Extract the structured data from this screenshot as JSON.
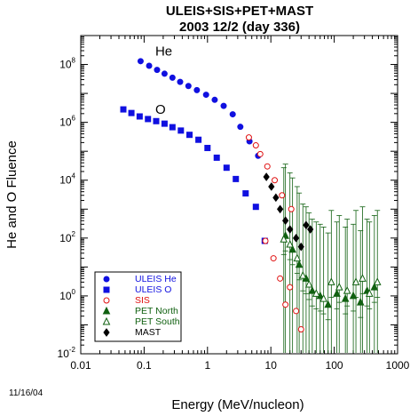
{
  "chart_data": {
    "type": "scatter",
    "title": "ULEIS+SIS+PET+MAST",
    "subtitle": "2003 12/2 (day 336)",
    "xlabel": "Energy (MeV/nucleon)",
    "ylabel": "He and O Fluence",
    "x_scale": "log",
    "y_scale": "log",
    "xlim": [
      0.01,
      1000
    ],
    "ylim": [
      0.01,
      1000000000
    ],
    "x_tick_values": [
      0.01,
      0.1,
      1,
      10,
      100,
      1000
    ],
    "x_tick_labels": [
      "0.01",
      "0.1",
      "1",
      "10",
      "100",
      "1000"
    ],
    "y_tick_labels": [
      {
        "value": 0.01,
        "mantissa": "10",
        "exponent": "-2"
      },
      {
        "value": 1,
        "mantissa": "10",
        "exponent": "0"
      },
      {
        "value": 100,
        "mantissa": "10",
        "exponent": "2"
      },
      {
        "value": 10000,
        "mantissa": "10",
        "exponent": "4"
      },
      {
        "value": 1000000,
        "mantissa": "10",
        "exponent": "6"
      },
      {
        "value": 100000000,
        "mantissa": "10",
        "exponent": "8"
      }
    ],
    "legend_position": "bottom-left",
    "annotations": [
      {
        "text": "He",
        "x": 0.15,
        "y": 200000000
      },
      {
        "text": "O",
        "x": 0.15,
        "y": 2000000
      }
    ],
    "series": [
      {
        "name": "ULEIS He",
        "marker": "circle-filled",
        "color": "#1010e0",
        "points": [
          [
            0.088,
            130000000.0
          ],
          [
            0.12,
            90000000.0
          ],
          [
            0.16,
            65000000.0
          ],
          [
            0.21,
            48000000.0
          ],
          [
            0.28,
            35000000.0
          ],
          [
            0.37,
            25000000.0
          ],
          [
            0.5,
            18000000.0
          ],
          [
            0.68,
            13000000.0
          ],
          [
            0.95,
            9000000.0
          ],
          [
            1.3,
            6000000.0
          ],
          [
            1.8,
            3700000.0
          ],
          [
            2.5,
            1900000.0
          ],
          [
            3.3,
            700000.0
          ],
          [
            4.6,
            220000.0
          ],
          [
            6.3,
            70000.0
          ]
        ]
      },
      {
        "name": "ULEIS O",
        "marker": "square-filled",
        "color": "#1010e0",
        "points": [
          [
            0.047,
            2800000.0
          ],
          [
            0.063,
            2100000.0
          ],
          [
            0.085,
            1600000.0
          ],
          [
            0.115,
            1300000.0
          ],
          [
            0.155,
            1100000.0
          ],
          [
            0.21,
            900000.0
          ],
          [
            0.28,
            680000.0
          ],
          [
            0.38,
            520000.0
          ],
          [
            0.52,
            370000.0
          ],
          [
            0.72,
            250000.0
          ],
          [
            1.0,
            130000.0
          ],
          [
            1.4,
            60000.0
          ],
          [
            2.0,
            27000.0
          ],
          [
            2.8,
            11000.0
          ],
          [
            4.0,
            3500.0
          ],
          [
            5.8,
            1200.0
          ],
          [
            8.0,
            80
          ]
        ]
      },
      {
        "name": "SIS",
        "marker": "circle-open",
        "color": "#e01010",
        "points": [
          [
            4.5,
            300000.0
          ],
          [
            5.8,
            160000.0
          ],
          [
            6.8,
            80000.0
          ],
          [
            8.8,
            30000.0
          ],
          [
            11.5,
            10000.0
          ],
          [
            15,
            3000
          ],
          [
            21,
            1000
          ],
          [
            8.2,
            80
          ],
          [
            11,
            20
          ],
          [
            14,
            4
          ],
          [
            17,
            0.5
          ],
          [
            20,
            2
          ],
          [
            25,
            0.3
          ],
          [
            30,
            0.07
          ]
        ]
      },
      {
        "name": "PET North",
        "marker": "triangle-filled",
        "color": "#106010",
        "points": [
          [
            17,
            120
          ],
          [
            22,
            40
          ],
          [
            28,
            12
          ],
          [
            36,
            4
          ],
          [
            45,
            1.5
          ],
          [
            60,
            1
          ],
          [
            80,
            0.5
          ],
          [
            110,
            1.2
          ],
          [
            150,
            0.8
          ],
          [
            200,
            1
          ],
          [
            260,
            0.6
          ],
          [
            330,
            1.5
          ],
          [
            430,
            2
          ]
        ]
      },
      {
        "name": "PET South",
        "marker": "triangle-open",
        "color": "#106010",
        "points": [
          [
            16,
            90
          ],
          [
            20,
            60
          ],
          [
            26,
            20
          ],
          [
            32,
            5
          ],
          [
            40,
            2.5
          ],
          [
            52,
            1.2
          ],
          [
            68,
            0.8
          ],
          [
            90,
            3
          ],
          [
            120,
            2
          ],
          [
            160,
            1.5
          ],
          [
            220,
            3
          ],
          [
            280,
            4
          ],
          [
            360,
            1.2
          ],
          [
            480,
            3
          ]
        ]
      },
      {
        "name": "MAST",
        "marker": "diamond-filled",
        "color": "#000000",
        "points": [
          [
            8.5,
            13000.0
          ],
          [
            10.2,
            6000
          ],
          [
            12,
            2500
          ],
          [
            14,
            1000
          ],
          [
            17,
            400
          ],
          [
            20,
            200
          ],
          [
            25,
            100
          ],
          [
            30,
            50
          ],
          [
            36,
            280
          ],
          [
            42,
            200
          ]
        ]
      }
    ]
  },
  "footer": {
    "date_stamp": "11/16/04"
  }
}
